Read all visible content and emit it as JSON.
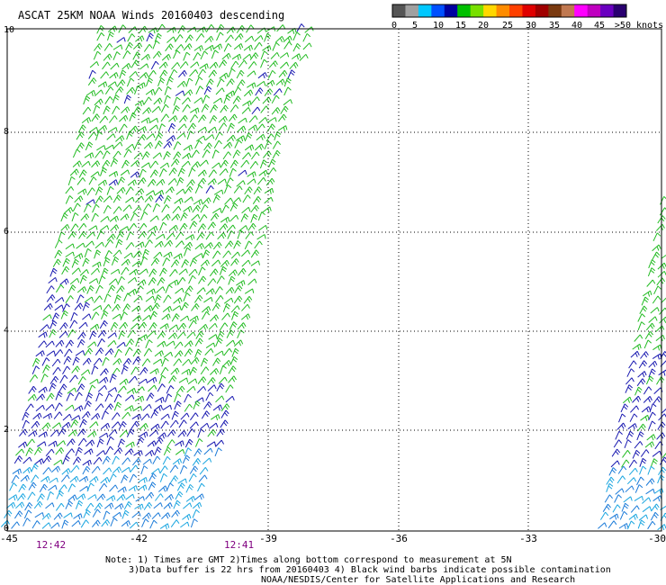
{
  "title": "ASCAT 25KM NOAA Winds 20160403 descending",
  "legend": {
    "labels": [
      "0",
      "5",
      "10",
      "15",
      "20",
      "25",
      "30",
      "35",
      "40",
      "45",
      ">50 knots"
    ],
    "colors": [
      "#555555",
      "#a0a0a0",
      "#00c8ff",
      "#0050ff",
      "#0000a0",
      "#00c000",
      "#78e000",
      "#ffd800",
      "#ff8c00",
      "#ff4000",
      "#e00000",
      "#a00000",
      "#7a3a10",
      "#c07850",
      "#ff00ff",
      "#c000c0",
      "#6a00c0",
      "#2a0070"
    ]
  },
  "axes": {
    "x_ticks": [
      "-45",
      "-42",
      "-39",
      "-36",
      "-33",
      "-30"
    ],
    "y_ticks": [
      "0",
      "2",
      "4",
      "6",
      "8",
      "10"
    ]
  },
  "swaths": [
    {
      "name": "left-swath",
      "time_labels": [
        "12:42",
        "12:41"
      ]
    },
    {
      "name": "right-swath",
      "time_labels": []
    }
  ],
  "notes": {
    "line1": "Note: 1) Times are GMT 2)Times along bottom correspond to measurement at 5N",
    "line2": "3)Data buffer is 22 hrs from 20160403 4) Black wind barbs indicate possible contamination",
    "line3": "NOAA/NESDIS/Center for Satellite Applications and Research"
  }
}
